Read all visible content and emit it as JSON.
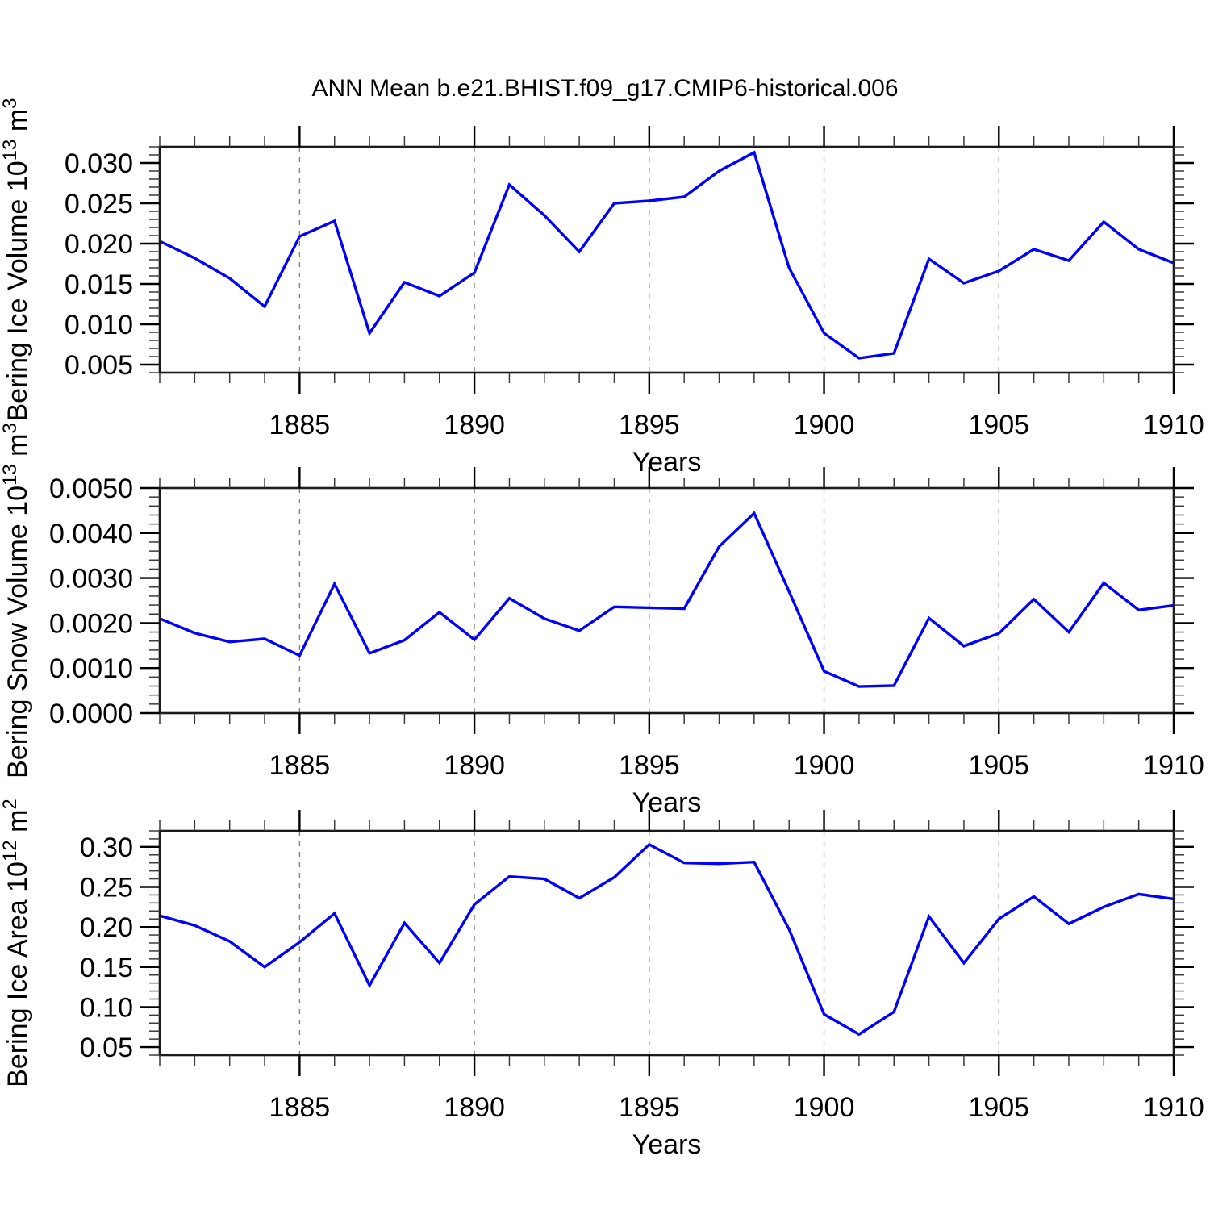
{
  "figure": {
    "title": "ANN Mean b.e21.BHIST.f09_g17.CMIP6-historical.006",
    "xlabel": "Years",
    "line_color": "#0000ff",
    "frame_color": "#1b1b1b",
    "dashed_gridline_color": "#808080",
    "x_major_tick_labels": [
      "1885",
      "1890",
      "1895",
      "1900",
      "1905",
      "1910"
    ],
    "x_major_tick_values": [
      1885,
      1890,
      1895,
      1900,
      1905,
      1910
    ],
    "dashed_gridline_years": [
      1885,
      1890,
      1895,
      1900,
      1905
    ],
    "x_range": [
      1881,
      1910
    ]
  },
  "chart_data": [
    {
      "type": "line",
      "ylabel_segments": [
        {
          "t": "Bering Ice Volume 10"
        },
        {
          "sup": "13"
        },
        {
          "t": " m"
        },
        {
          "sup": "3"
        }
      ],
      "ylabel_plain": "Bering Ice Volume 10^13 m^3",
      "xlabel": "Years",
      "x": [
        1881,
        1882,
        1883,
        1884,
        1885,
        1886,
        1887,
        1888,
        1889,
        1890,
        1891,
        1892,
        1893,
        1894,
        1895,
        1896,
        1897,
        1898,
        1899,
        1900,
        1901,
        1902,
        1903,
        1904,
        1905,
        1906,
        1907,
        1908,
        1909,
        1910
      ],
      "values": [
        0.0203,
        0.0182,
        0.0157,
        0.0122,
        0.0209,
        0.0228,
        0.0089,
        0.0152,
        0.0135,
        0.0164,
        0.0273,
        0.0235,
        0.019,
        0.025,
        0.0253,
        0.0258,
        0.029,
        0.0313,
        0.017,
        0.0089,
        0.0058,
        0.0064,
        0.0181,
        0.0151,
        0.0166,
        0.0193,
        0.0179,
        0.0227,
        0.0193,
        0.0176
      ],
      "ylim": [
        0.004,
        0.032
      ],
      "y_major_tick_labels": [
        "0.005",
        "0.010",
        "0.015",
        "0.020",
        "0.025",
        "0.030"
      ],
      "y_major_tick_values": [
        0.005,
        0.01,
        0.015,
        0.02,
        0.025,
        0.03
      ],
      "y_minor_step": 0.001,
      "grid": "vertical-dashed",
      "legend": "none"
    },
    {
      "type": "line",
      "ylabel_segments": [
        {
          "t": "Bering Snow Volume 10"
        },
        {
          "sup": "13"
        },
        {
          "t": " m"
        },
        {
          "sup": "3"
        }
      ],
      "ylabel_plain": "Bering Snow Volume 10^13 m^3",
      "xlabel": "Years",
      "x": [
        1881,
        1882,
        1883,
        1884,
        1885,
        1886,
        1887,
        1888,
        1889,
        1890,
        1891,
        1892,
        1893,
        1894,
        1895,
        1896,
        1897,
        1898,
        1899,
        1900,
        1901,
        1902,
        1903,
        1904,
        1905,
        1906,
        1907,
        1908,
        1909,
        1910
      ],
      "values": [
        0.0021,
        0.00178,
        0.00158,
        0.00165,
        0.00128,
        0.00287,
        0.00133,
        0.00162,
        0.00224,
        0.00163,
        0.00255,
        0.0021,
        0.00183,
        0.00236,
        0.00234,
        0.00232,
        0.0037,
        0.00444,
        0.0027,
        0.00093,
        0.00059,
        0.00061,
        0.00211,
        0.00149,
        0.00177,
        0.00253,
        0.0018,
        0.00289,
        0.00229,
        0.00239
      ],
      "ylim": [
        0.0,
        0.005
      ],
      "y_major_tick_labels": [
        "0.0000",
        "0.0010",
        "0.0020",
        "0.0030",
        "0.0040",
        "0.0050"
      ],
      "y_major_tick_values": [
        0.0,
        0.001,
        0.002,
        0.003,
        0.004,
        0.005
      ],
      "y_minor_step": 0.0002,
      "grid": "vertical-dashed",
      "legend": "none"
    },
    {
      "type": "line",
      "ylabel_segments": [
        {
          "t": "Bering Ice Area 10"
        },
        {
          "sup": "12"
        },
        {
          "t": " m"
        },
        {
          "sup": "2"
        }
      ],
      "ylabel_plain": "Bering Ice Area 10^12 m^2",
      "xlabel": "Years",
      "x": [
        1881,
        1882,
        1883,
        1884,
        1885,
        1886,
        1887,
        1888,
        1889,
        1890,
        1891,
        1892,
        1893,
        1894,
        1895,
        1896,
        1897,
        1898,
        1899,
        1900,
        1901,
        1902,
        1903,
        1904,
        1905,
        1906,
        1907,
        1908,
        1909,
        1910
      ],
      "values": [
        0.214,
        0.202,
        0.182,
        0.15,
        0.181,
        0.217,
        0.127,
        0.205,
        0.155,
        0.228,
        0.263,
        0.26,
        0.236,
        0.262,
        0.303,
        0.28,
        0.279,
        0.281,
        0.197,
        0.091,
        0.066,
        0.094,
        0.213,
        0.155,
        0.21,
        0.238,
        0.204,
        0.225,
        0.241,
        0.235
      ],
      "ylim": [
        0.04,
        0.32
      ],
      "y_major_tick_labels": [
        "0.05",
        "0.10",
        "0.15",
        "0.20",
        "0.25",
        "0.30"
      ],
      "y_major_tick_values": [
        0.05,
        0.1,
        0.15,
        0.2,
        0.25,
        0.3
      ],
      "y_minor_step": 0.01,
      "grid": "vertical-dashed",
      "legend": "none"
    }
  ]
}
